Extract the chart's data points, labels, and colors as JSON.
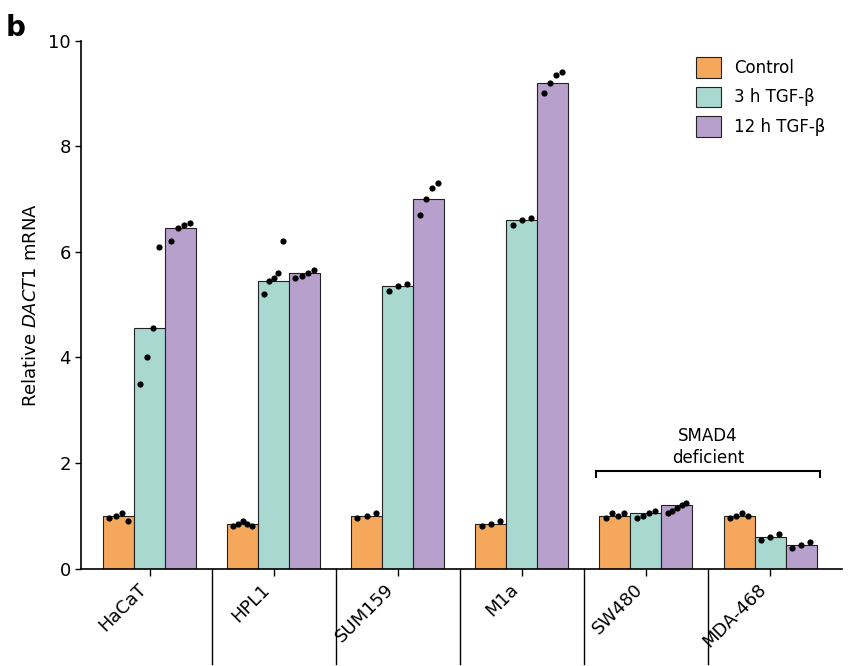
{
  "categories": [
    "HaCaT",
    "HPL1",
    "SUM159",
    "M1a",
    "SW480",
    "MDA-468"
  ],
  "control_vals": [
    1.0,
    0.85,
    1.0,
    0.85,
    1.0,
    1.0
  ],
  "tgf3h_vals": [
    4.55,
    5.45,
    5.35,
    6.6,
    1.05,
    0.6
  ],
  "tgf12h_vals": [
    6.45,
    5.6,
    7.0,
    9.2,
    1.2,
    0.45
  ],
  "control_dots": [
    [
      0.95,
      1.0,
      1.05,
      0.9
    ],
    [
      0.8,
      0.85,
      0.9,
      0.85,
      0.8
    ],
    [
      0.95,
      1.0,
      1.05
    ],
    [
      0.8,
      0.85,
      0.9
    ],
    [
      0.95,
      1.05,
      1.0,
      1.05
    ],
    [
      0.95,
      1.0,
      1.05,
      1.0
    ]
  ],
  "tgf3h_dots": [
    [
      3.5,
      4.0,
      4.55,
      6.1
    ],
    [
      5.2,
      5.45,
      5.5,
      5.6,
      6.2
    ],
    [
      5.25,
      5.35,
      5.4
    ],
    [
      6.5,
      6.6,
      6.65
    ],
    [
      0.95,
      1.0,
      1.05,
      1.1
    ],
    [
      0.55,
      0.6,
      0.65
    ]
  ],
  "tgf12h_dots": [
    [
      6.2,
      6.45,
      6.5,
      6.55
    ],
    [
      5.5,
      5.55,
      5.6,
      5.65
    ],
    [
      6.7,
      7.0,
      7.2,
      7.3
    ],
    [
      9.0,
      9.2,
      9.35,
      9.4
    ],
    [
      1.05,
      1.1,
      1.15,
      1.2,
      1.25
    ],
    [
      0.4,
      0.45,
      0.5
    ]
  ],
  "control_color": "#F5A85C",
  "tgf3h_color": "#A8D8D0",
  "tgf12h_color": "#B8A0CC",
  "bar_width": 0.25,
  "ylim": [
    0,
    10
  ],
  "yticks": [
    0,
    2,
    4,
    6,
    8,
    10
  ],
  "ylabel": "Relative $\\it{DACT1}$ mRNA",
  "title_label": "b",
  "legend_labels": [
    "Control",
    "3 h TGF-β",
    "12 h TGF-β"
  ],
  "smad4_text": "SMAD4\ndeficient",
  "background_color": "#FFFFFF",
  "edge_color": "#222222"
}
